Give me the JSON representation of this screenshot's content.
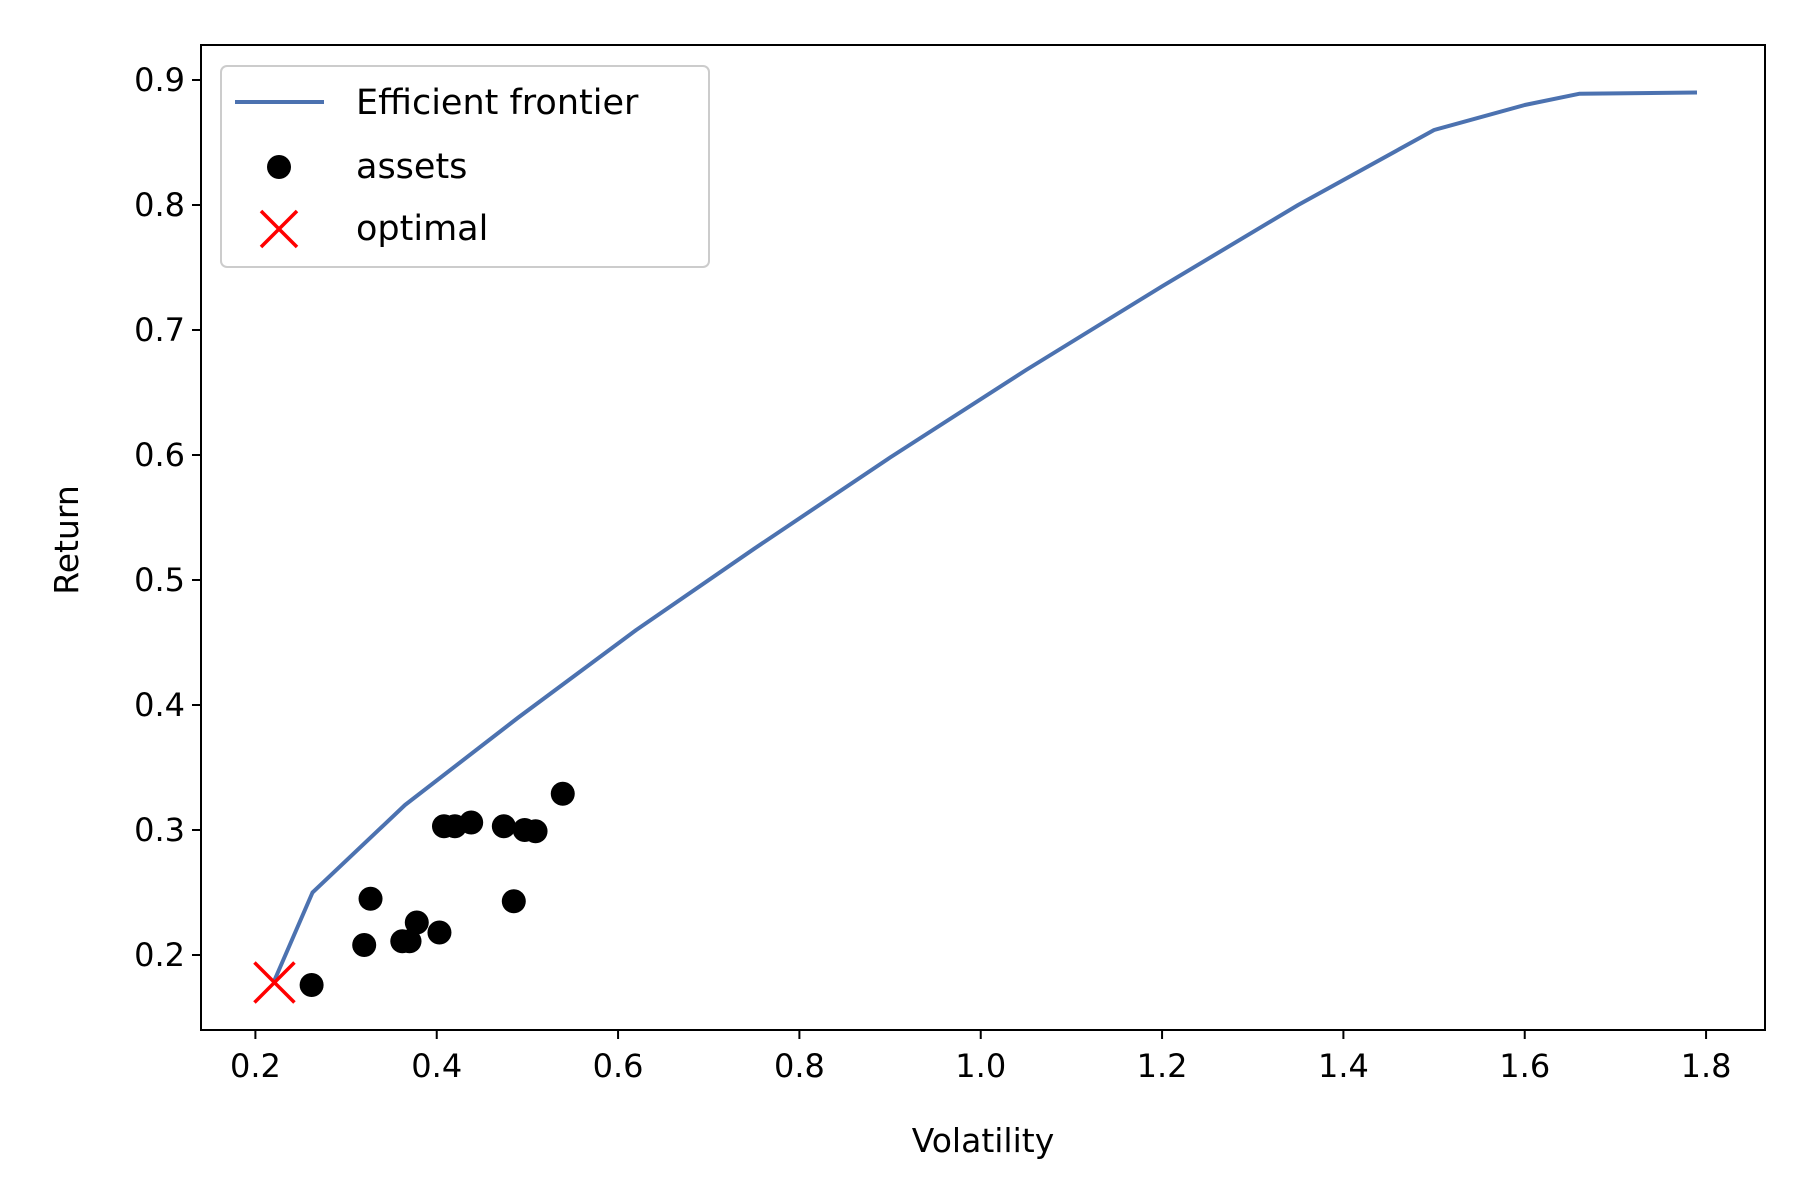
{
  "chart_data": {
    "type": "scatter",
    "xlabel": "Volatility",
    "ylabel": "Return",
    "xlim": [
      0.14,
      1.865
    ],
    "ylim": [
      0.14,
      0.928
    ],
    "xticks": [
      0.2,
      0.4,
      0.6,
      0.8,
      1.0,
      1.2,
      1.4,
      1.6,
      1.8
    ],
    "xtick_labels": [
      "0.2",
      "0.4",
      "0.6",
      "0.8",
      "1.0",
      "1.2",
      "1.4",
      "1.6",
      "1.8"
    ],
    "yticks": [
      0.2,
      0.3,
      0.4,
      0.5,
      0.6,
      0.7,
      0.8,
      0.9
    ],
    "ytick_labels": [
      "0.2",
      "0.3",
      "0.4",
      "0.5",
      "0.6",
      "0.7",
      "0.8",
      "0.9"
    ],
    "grid": false,
    "legend_position": "upper-left",
    "series": [
      {
        "name": "Efficient frontier",
        "kind": "line",
        "color": "#4c72b0",
        "x": [
          0.22,
          0.263,
          0.365,
          0.49,
          0.62,
          0.75,
          0.9,
          1.05,
          1.2,
          1.35,
          1.5,
          1.6,
          1.66,
          1.79
        ],
        "y": [
          0.178,
          0.25,
          0.32,
          0.39,
          0.46,
          0.525,
          0.598,
          0.668,
          0.735,
          0.8,
          0.86,
          0.88,
          0.889,
          0.89
        ]
      },
      {
        "name": "assets",
        "kind": "scatter",
        "color": "#000000",
        "x": [
          0.262,
          0.32,
          0.327,
          0.362,
          0.37,
          0.378,
          0.403,
          0.408,
          0.42,
          0.438,
          0.474,
          0.485,
          0.497,
          0.509,
          0.539
        ],
        "y": [
          0.176,
          0.208,
          0.245,
          0.211,
          0.211,
          0.226,
          0.218,
          0.303,
          0.303,
          0.306,
          0.303,
          0.243,
          0.3,
          0.299,
          0.329
        ]
      },
      {
        "name": "optimal",
        "kind": "marker",
        "color": "#ff0000",
        "x": [
          0.221
        ],
        "y": [
          0.178
        ]
      }
    ]
  }
}
